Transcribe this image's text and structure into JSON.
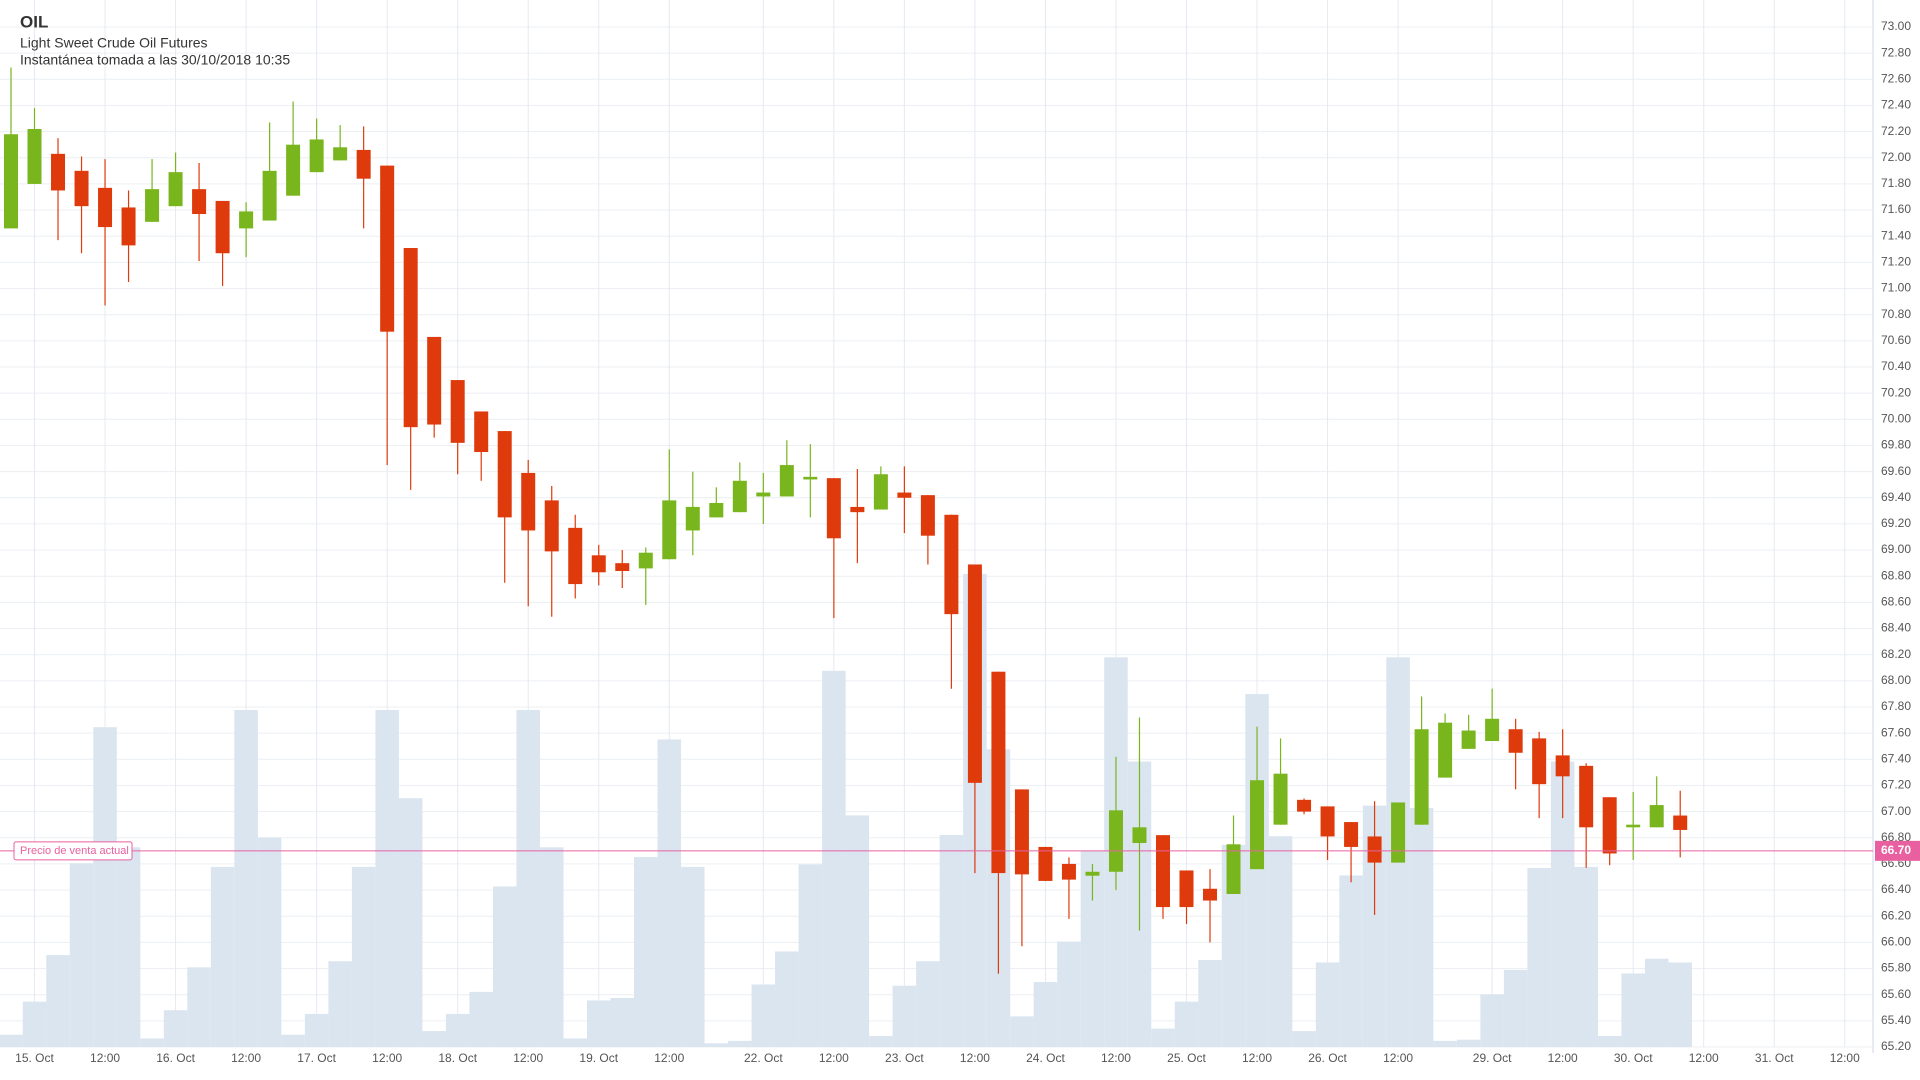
{
  "chart_data": {
    "type": "candlestick",
    "title": "OIL",
    "subtitle": "Light Sweet Crude Oil Futures",
    "note": "Instantánea tomada a las 30/10/2018 10:35",
    "categories": [
      null,
      "15. Oct",
      null,
      null,
      "12:00",
      null,
      null,
      "16. Oct",
      null,
      null,
      "12:00",
      null,
      null,
      "17. Oct",
      null,
      null,
      "12:00",
      null,
      null,
      "18. Oct",
      null,
      null,
      "12:00",
      null,
      null,
      "19. Oct",
      null,
      null,
      "12:00",
      null,
      null,
      null,
      "22. Oct",
      null,
      null,
      "12:00",
      null,
      null,
      "23. Oct",
      null,
      null,
      "12:00",
      null,
      null,
      "24. Oct",
      null,
      null,
      "12:00",
      null,
      null,
      "25. Oct",
      null,
      null,
      "12:00",
      null,
      null,
      "26. Oct",
      null,
      null,
      "12:00",
      null,
      null,
      null,
      "29. Oct",
      null,
      null,
      "12:00",
      null,
      null,
      "30. Oct",
      null,
      null,
      "12:00",
      null,
      null,
      "31. Oct",
      null,
      null,
      "12:00"
    ],
    "open": [
      71.46,
      71.8,
      72.03,
      71.9,
      71.77,
      71.62,
      71.51,
      71.63,
      71.76,
      71.67,
      71.46,
      71.52,
      71.71,
      71.89,
      71.98,
      72.06,
      71.94,
      71.31,
      70.63,
      70.3,
      70.06,
      69.91,
      69.59,
      69.38,
      69.17,
      68.96,
      68.9,
      68.86,
      68.93,
      69.15,
      69.25,
      69.29,
      69.41,
      69.41,
      69.54,
      69.55,
      69.33,
      69.31,
      69.44,
      69.42,
      69.27,
      68.89,
      68.07,
      67.17,
      66.73,
      66.6,
      66.51,
      66.54,
      66.76,
      66.82,
      66.55,
      66.41,
      66.37,
      66.56,
      66.9,
      67.09,
      67.04,
      66.92,
      66.81,
      66.61,
      66.9,
      67.26,
      67.48,
      67.54,
      67.63,
      67.56,
      67.43,
      67.35,
      67.11,
      66.88,
      66.88,
      66.97,
      null,
      null,
      null,
      null,
      null,
      null,
      null
    ],
    "high": [
      72.69,
      72.38,
      72.15,
      72.01,
      71.99,
      71.75,
      71.99,
      72.04,
      71.96,
      71.67,
      71.66,
      72.27,
      72.43,
      72.3,
      72.25,
      72.24,
      71.94,
      71.31,
      70.63,
      70.3,
      70.06,
      69.91,
      69.69,
      69.49,
      69.27,
      69.04,
      69.0,
      69.02,
      69.77,
      69.6,
      69.48,
      69.67,
      69.59,
      69.84,
      69.81,
      69.55,
      69.62,
      69.64,
      69.64,
      69.42,
      69.27,
      68.89,
      68.07,
      67.17,
      66.73,
      66.65,
      66.6,
      67.42,
      67.72,
      66.82,
      66.55,
      66.56,
      66.97,
      67.65,
      67.56,
      67.1,
      67.04,
      66.92,
      67.08,
      67.07,
      67.88,
      67.75,
      67.74,
      67.94,
      67.71,
      67.61,
      67.63,
      67.37,
      67.11,
      67.15,
      67.27,
      67.16,
      null,
      null,
      null,
      null,
      null,
      null,
      null
    ],
    "low": [
      71.46,
      71.8,
      71.37,
      71.27,
      70.87,
      71.05,
      71.51,
      71.63,
      71.21,
      71.02,
      71.24,
      71.52,
      71.71,
      71.89,
      71.98,
      71.46,
      69.65,
      69.46,
      69.86,
      69.58,
      69.53,
      68.75,
      68.57,
      68.49,
      68.63,
      68.73,
      68.71,
      68.58,
      68.93,
      68.96,
      69.25,
      69.29,
      69.2,
      69.41,
      69.25,
      68.48,
      68.9,
      69.31,
      69.13,
      68.89,
      67.94,
      66.53,
      65.76,
      65.97,
      66.47,
      66.18,
      66.32,
      66.4,
      66.09,
      66.18,
      66.14,
      66.0,
      66.37,
      66.56,
      66.9,
      66.98,
      66.63,
      66.46,
      66.21,
      66.61,
      66.9,
      67.26,
      67.48,
      67.54,
      67.17,
      66.95,
      66.95,
      66.57,
      66.59,
      66.63,
      66.88,
      66.65,
      null,
      null,
      null,
      null,
      null,
      null,
      null
    ],
    "close": [
      72.18,
      72.22,
      71.75,
      71.63,
      71.47,
      71.33,
      71.76,
      71.89,
      71.57,
      71.27,
      71.59,
      71.9,
      72.1,
      72.14,
      72.08,
      71.84,
      70.67,
      69.94,
      69.96,
      69.82,
      69.75,
      69.25,
      69.15,
      68.99,
      68.74,
      68.83,
      68.84,
      68.98,
      69.38,
      69.33,
      69.36,
      69.53,
      69.44,
      69.65,
      69.56,
      69.09,
      69.29,
      69.58,
      69.4,
      69.11,
      68.51,
      67.22,
      66.53,
      66.52,
      66.47,
      66.48,
      66.54,
      67.01,
      66.88,
      66.27,
      66.27,
      66.32,
      66.75,
      67.24,
      67.29,
      67.0,
      66.81,
      66.73,
      66.61,
      67.07,
      67.63,
      67.68,
      67.62,
      67.71,
      67.45,
      67.21,
      67.27,
      66.88,
      66.68,
      66.9,
      67.05,
      66.86,
      null,
      null,
      null,
      null,
      null,
      null,
      null
    ],
    "volume": [
      10,
      37,
      75,
      150,
      261,
      163,
      7,
      30,
      65,
      147,
      275,
      171,
      10,
      27,
      70,
      147,
      275,
      203,
      13,
      27,
      45,
      131,
      275,
      163,
      7,
      38,
      40,
      155,
      251,
      147,
      3,
      5,
      51,
      78,
      149,
      307,
      189,
      9,
      50,
      70,
      173,
      386,
      243,
      25,
      53,
      86,
      160,
      318,
      233,
      15,
      37,
      71,
      165,
      288,
      172,
      13,
      69,
      140,
      197,
      318,
      195,
      5,
      6,
      43,
      63,
      146,
      233,
      147,
      9,
      60,
      72,
      69,
      null,
      null,
      null,
      null,
      null,
      null,
      null
    ],
    "up_color": "#79b51c",
    "down_color": "#df3a0c",
    "volume_color": "#dae5f0",
    "current_price": {
      "value": 66.7,
      "label": "66.70"
    },
    "current_price_text": "Precio de venta actual",
    "current_price_color": "#e8609f",
    "ylim": [
      65.2,
      73
    ],
    "yticks": [
      {
        "value": 65.2,
        "label": "65.20"
      },
      {
        "value": 65.4,
        "label": "65.40"
      },
      {
        "value": 65.6,
        "label": "65.60"
      },
      {
        "value": 65.8,
        "label": "65.80"
      },
      {
        "value": 66,
        "label": "66.00"
      },
      {
        "value": 66.2,
        "label": "66.20"
      },
      {
        "value": 66.4,
        "label": "66.40"
      },
      {
        "value": 66.6,
        "label": "66.60"
      },
      {
        "value": 66.8,
        "label": "66.80"
      },
      {
        "value": 67,
        "label": "67.00"
      },
      {
        "value": 67.2,
        "label": "67.20"
      },
      {
        "value": 67.4,
        "label": "67.40"
      },
      {
        "value": 67.6,
        "label": "67.60"
      },
      {
        "value": 67.8,
        "label": "67.80"
      },
      {
        "value": 68,
        "label": "68.00"
      },
      {
        "value": 68.2,
        "label": "68.20"
      },
      {
        "value": 68.4,
        "label": "68.40"
      },
      {
        "value": 68.6,
        "label": "68.60"
      },
      {
        "value": 68.8,
        "label": "68.80"
      },
      {
        "value": 69,
        "label": "69.00"
      },
      {
        "value": 69.2,
        "label": "69.20"
      },
      {
        "value": 69.4,
        "label": "69.40"
      },
      {
        "value": 69.6,
        "label": "69.60"
      },
      {
        "value": 69.8,
        "label": "69.80"
      },
      {
        "value": 70,
        "label": "70.00"
      },
      {
        "value": 70.2,
        "label": "70.20"
      },
      {
        "value": 70.4,
        "label": "70.40"
      },
      {
        "value": 70.6,
        "label": "70.60"
      },
      {
        "value": 70.8,
        "label": "70.80"
      },
      {
        "value": 71,
        "label": "71.00"
      },
      {
        "value": 71.2,
        "label": "71.20"
      },
      {
        "value": 71.4,
        "label": "71.40"
      },
      {
        "value": 71.6,
        "label": "71.60"
      },
      {
        "value": 71.8,
        "label": "71.80"
      },
      {
        "value": 72,
        "label": "72.00"
      },
      {
        "value": 72.2,
        "label": "72.20"
      },
      {
        "value": 72.4,
        "label": "72.40"
      },
      {
        "value": 72.6,
        "label": "72.60"
      },
      {
        "value": 72.8,
        "label": "72.80"
      },
      {
        "value": 73,
        "label": "73.00"
      }
    ],
    "grid": true
  }
}
